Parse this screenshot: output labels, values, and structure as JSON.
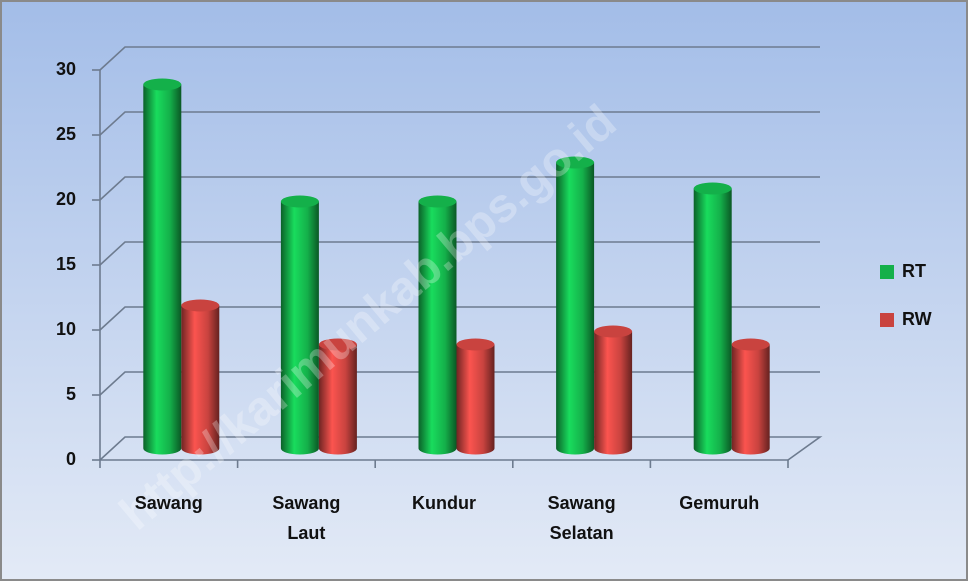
{
  "chart_data": {
    "type": "bar3d",
    "categories": [
      "Sawang",
      "Sawang Laut",
      "Kundur",
      "Sawang Selatan",
      "Gemuruh"
    ],
    "series": [
      {
        "name": "RT",
        "color": "#14b04a",
        "values": [
          28,
          19,
          19,
          22,
          20
        ]
      },
      {
        "name": "RW",
        "color": "#c9433f",
        "values": [
          11,
          8,
          8,
          9,
          8
        ]
      }
    ],
    "ylim": [
      0,
      30
    ],
    "yticks": [
      0,
      5,
      10,
      15,
      20,
      25,
      30
    ],
    "grid": true,
    "legend": "right",
    "watermark": "http://karimunkab.bps.go.id"
  }
}
